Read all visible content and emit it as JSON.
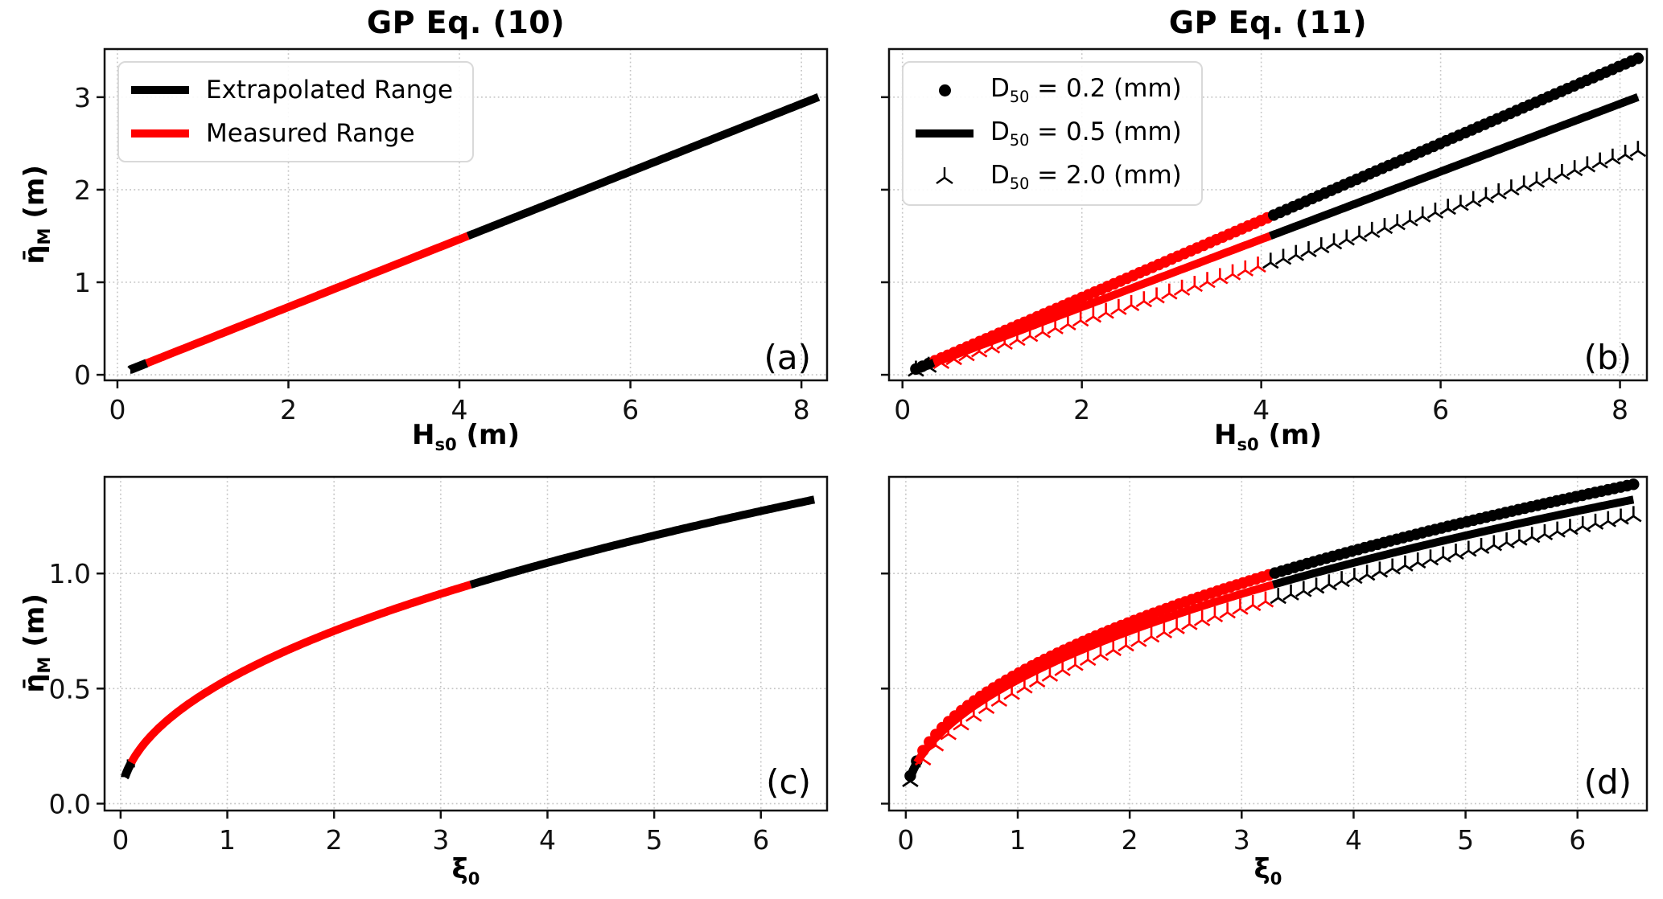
{
  "figure": {
    "background": "#ffffff"
  },
  "colors": {
    "measured": "#ff0000",
    "extrapolated": "#000000",
    "grid": "#c4c4c4",
    "spine": "#111111",
    "legend_border": "#d9d9d9"
  },
  "chart_data": [
    {
      "id": "a",
      "type": "line",
      "title": "GP Eq. (10)",
      "panel_label": "(a)",
      "xlabel": {
        "base": "H",
        "sub": "s0",
        "suffix": " (m)"
      },
      "ylabel": {
        "base": "η̄",
        "sub": "M",
        "suffix": " (m)"
      },
      "xlim": [
        -0.15,
        8.3
      ],
      "ylim": [
        -0.06,
        3.52
      ],
      "xticks": [
        0,
        2,
        4,
        6,
        8
      ],
      "yticks": [
        0,
        1,
        2,
        3
      ],
      "ytick_labels": [
        "0",
        "1",
        "2",
        "3"
      ],
      "grid": true,
      "legend": {
        "position": "upper-left",
        "entries": [
          {
            "swatch": "line",
            "color": "#000000",
            "label": {
              "text": "Extrapolated Range"
            }
          },
          {
            "swatch": "line",
            "color": "#ff0000",
            "label": {
              "text": "Measured Range"
            }
          }
        ]
      },
      "series": [
        {
          "name": "GP Eq. (10)",
          "style": "line",
          "model": "linear",
          "slope": 0.366,
          "x_start": 0.15,
          "x_end": 8.2,
          "measured_x_range": [
            0.34,
            4.1
          ],
          "y_at_x_end": 3.0
        }
      ]
    },
    {
      "id": "b",
      "type": "line",
      "title": "GP Eq. (11)",
      "panel_label": "(b)",
      "xlabel": {
        "base": "H",
        "sub": "s0",
        "suffix": " (m)"
      },
      "ylabel": null,
      "xlim": [
        -0.15,
        8.3
      ],
      "ylim": [
        -0.06,
        3.52
      ],
      "xticks": [
        0,
        2,
        4,
        6,
        8
      ],
      "yticks": [
        0,
        1,
        2,
        3
      ],
      "ytick_labels": [],
      "grid": true,
      "legend": {
        "position": "upper-left",
        "entries": [
          {
            "swatch": "dot",
            "color": "#000000",
            "label": {
              "base": "D",
              "sub": "50",
              "suffix": " = 0.2 (mm)"
            }
          },
          {
            "swatch": "line",
            "color": "#000000",
            "label": {
              "base": "D",
              "sub": "50",
              "suffix": " = 0.5 (mm)"
            }
          },
          {
            "swatch": "tri",
            "color": "#000000",
            "label": {
              "base": "D",
              "sub": "50",
              "suffix": " = 2.0 (mm)"
            }
          }
        ]
      },
      "series": [
        {
          "name": "D50 = 0.2 (mm)",
          "style": "dots",
          "model": "linear",
          "slope": 0.417,
          "x_start": 0.15,
          "x_end": 8.2,
          "measured_x_range": [
            0.35,
            4.1
          ],
          "y_at_x_end": 3.42
        },
        {
          "name": "D50 = 0.5 (mm)",
          "style": "line",
          "model": "linear",
          "slope": 0.366,
          "x_start": 0.15,
          "x_end": 8.2,
          "measured_x_range": [
            0.35,
            4.1
          ],
          "y_at_x_end": 3.0
        },
        {
          "name": "D50 = 2.0 (mm)",
          "style": "tri",
          "model": "linear",
          "slope": 0.295,
          "x_start": 0.15,
          "x_end": 8.2,
          "measured_x_range": [
            0.35,
            4.1
          ],
          "y_at_x_end": 2.42
        }
      ]
    },
    {
      "id": "c",
      "type": "line",
      "title": null,
      "panel_label": "(c)",
      "xlabel": {
        "base": "ξ",
        "sub": "0",
        "suffix": ""
      },
      "ylabel": {
        "base": "η̄",
        "sub": "M",
        "suffix": " (m)"
      },
      "xlim": [
        -0.15,
        6.62
      ],
      "ylim": [
        -0.03,
        1.42
      ],
      "xticks": [
        0,
        1,
        2,
        3,
        4,
        5,
        6
      ],
      "yticks": [
        0,
        0.5,
        1
      ],
      "ytick_labels": [
        "0.0",
        "0.5",
        "1.0"
      ],
      "grid": true,
      "legend": null,
      "series": [
        {
          "name": "GP Eq. (10)",
          "style": "line",
          "model": "power",
          "a": 0.538,
          "b": 0.48,
          "x_start": 0.04,
          "x_end": 6.5,
          "measured_x_range": [
            0.1,
            3.28
          ],
          "y_at_x_end": 1.32
        }
      ]
    },
    {
      "id": "d",
      "type": "line",
      "title": null,
      "panel_label": "(d)",
      "xlabel": {
        "base": "ξ",
        "sub": "0",
        "suffix": ""
      },
      "ylabel": null,
      "xlim": [
        -0.15,
        6.62
      ],
      "ylim": [
        -0.03,
        1.42
      ],
      "xticks": [
        0,
        1,
        2,
        3,
        4,
        5,
        6
      ],
      "yticks": [
        0,
        0.5,
        1
      ],
      "ytick_labels": [],
      "grid": true,
      "legend": null,
      "series": [
        {
          "name": "D50 = 0.2 (mm)",
          "style": "dots",
          "model": "power",
          "a": 0.565,
          "b": 0.48,
          "x_start": 0.04,
          "x_end": 6.5,
          "measured_x_range": [
            0.1,
            3.28
          ],
          "y_at_x_end": 1.39
        },
        {
          "name": "D50 = 0.5 (mm)",
          "style": "line",
          "model": "power",
          "a": 0.538,
          "b": 0.48,
          "x_start": 0.04,
          "x_end": 6.5,
          "measured_x_range": [
            0.1,
            3.28
          ],
          "y_at_x_end": 1.32
        },
        {
          "name": "D50 = 2.0 (mm)",
          "style": "tri",
          "model": "power",
          "a": 0.49,
          "b": 0.5,
          "x_start": 0.04,
          "x_end": 6.5,
          "measured_x_range": [
            0.1,
            3.28
          ],
          "y_at_x_end": 1.25
        }
      ]
    }
  ]
}
